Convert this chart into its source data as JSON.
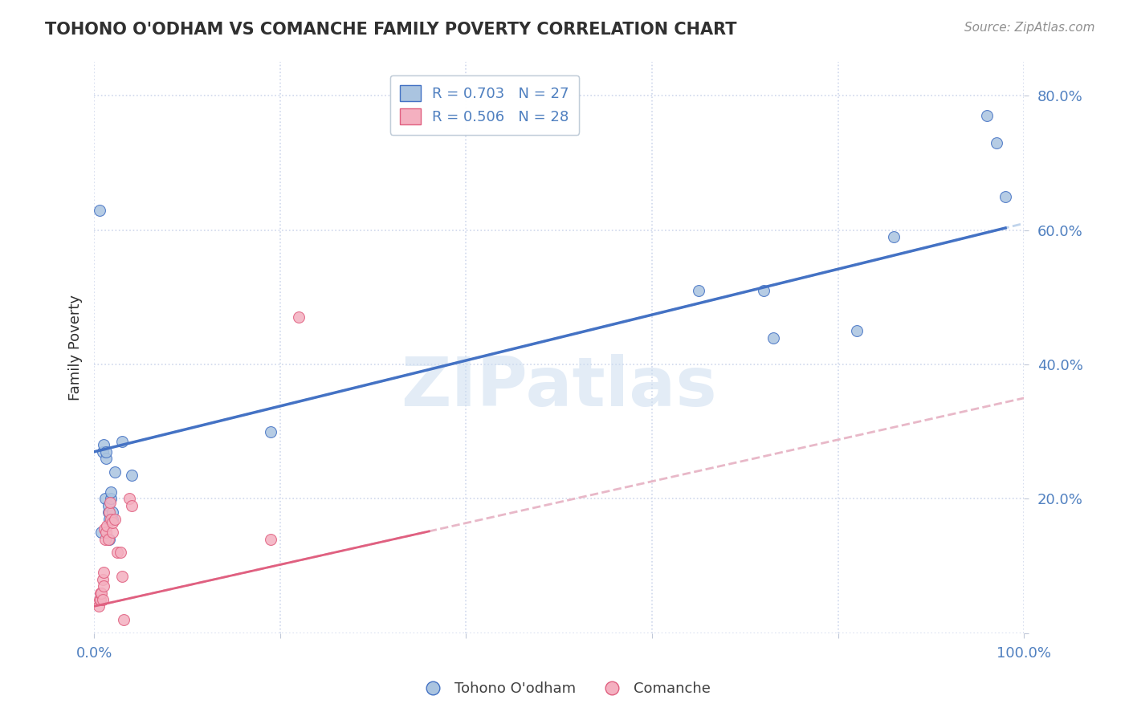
{
  "title": "TOHONO O'ODHAM VS COMANCHE FAMILY POVERTY CORRELATION CHART",
  "source": "Source: ZipAtlas.com",
  "ylabel": "Family Poverty",
  "xlim": [
    0,
    1.0
  ],
  "ylim": [
    0,
    0.85
  ],
  "legend_blue_r": "R = 0.703",
  "legend_blue_n": "N = 27",
  "legend_pink_r": "R = 0.506",
  "legend_pink_n": "N = 28",
  "legend_blue_label": "Tohono O'odham",
  "legend_pink_label": "Comanche",
  "watermark": "ZIPatlas",
  "blue_scatter_x": [
    0.006,
    0.008,
    0.009,
    0.01,
    0.012,
    0.013,
    0.013,
    0.015,
    0.015,
    0.016,
    0.016,
    0.018,
    0.018,
    0.02,
    0.02,
    0.022,
    0.03,
    0.04,
    0.19,
    0.65,
    0.72,
    0.73,
    0.82,
    0.86,
    0.96,
    0.97,
    0.98
  ],
  "blue_scatter_y": [
    0.63,
    0.15,
    0.27,
    0.28,
    0.2,
    0.26,
    0.27,
    0.18,
    0.19,
    0.14,
    0.17,
    0.2,
    0.21,
    0.17,
    0.18,
    0.24,
    0.285,
    0.235,
    0.3,
    0.51,
    0.51,
    0.44,
    0.45,
    0.59,
    0.77,
    0.73,
    0.65
  ],
  "pink_scatter_x": [
    0.005,
    0.006,
    0.007,
    0.007,
    0.008,
    0.009,
    0.009,
    0.01,
    0.01,
    0.011,
    0.012,
    0.013,
    0.014,
    0.015,
    0.016,
    0.017,
    0.018,
    0.02,
    0.02,
    0.022,
    0.025,
    0.028,
    0.03,
    0.032,
    0.038,
    0.04,
    0.19,
    0.22
  ],
  "pink_scatter_y": [
    0.04,
    0.05,
    0.05,
    0.06,
    0.06,
    0.05,
    0.08,
    0.07,
    0.09,
    0.155,
    0.14,
    0.15,
    0.16,
    0.14,
    0.18,
    0.195,
    0.17,
    0.15,
    0.165,
    0.17,
    0.12,
    0.12,
    0.085,
    0.02,
    0.2,
    0.19,
    0.14,
    0.47
  ],
  "blue_line_intercept": 0.27,
  "blue_line_slope": 0.34,
  "pink_line_intercept": 0.04,
  "pink_line_slope": 0.31,
  "blue_color": "#aac4e0",
  "pink_color": "#f4b0c0",
  "blue_line_color": "#4472c4",
  "pink_line_color": "#e06080",
  "blue_dash_color": "#c0d4ec",
  "pink_dash_color": "#e8b8c8",
  "background_color": "#ffffff",
  "grid_color": "#d0d8ec",
  "title_color": "#303030",
  "axis_color": "#5080c0",
  "source_color": "#909090"
}
